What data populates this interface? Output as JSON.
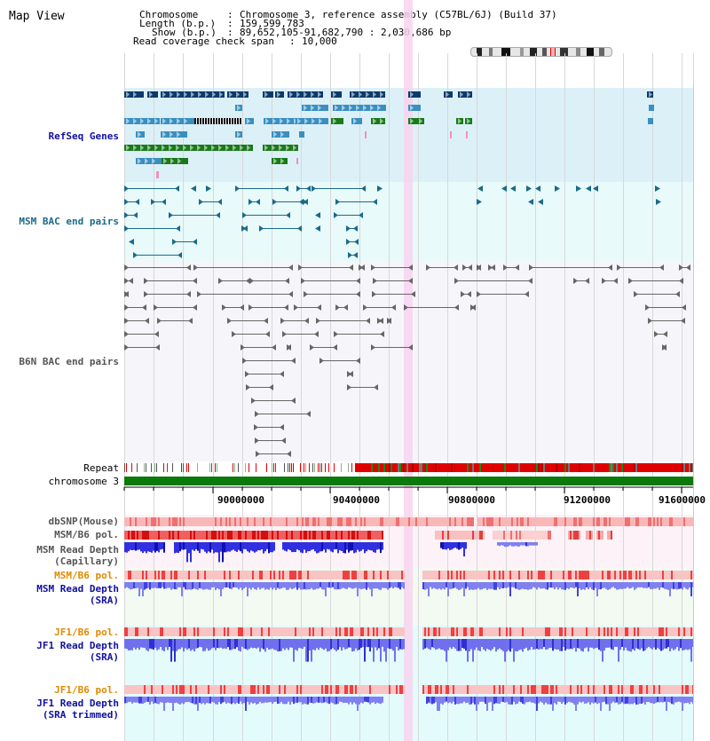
{
  "view_title": "Map View",
  "header": {
    "chromosome_key": "Chromosome",
    "chromosome_value": "Chromosome 3, reference assembly (C57BL/6J) (Build 37)",
    "length_key": "Length (b.p.)",
    "length_value": "159,599,783",
    "show_key": "Show (b.p.)",
    "show_value": "89,652,105-91,682,790 : 2,030,686 bp",
    "coverage_key": "Read coverage check span",
    "coverage_value": "10,000"
  },
  "tracks": {
    "refseq": "RefSeq Genes",
    "msm_bac": "MSM BAC end pairs",
    "b6n_bac": "B6N BAC end pairs",
    "repeat": "Repeat",
    "chromosome": "chromosome 3",
    "dbsnp": "dbSNP(Mouse)",
    "msm_b6_pol_1": "MSM/B6 pol.",
    "msm_read_depth_cap_1": "MSM Read Depth",
    "msm_read_depth_cap_2": "(Capillary)",
    "msm_b6_pol_2": "MSM/B6 pol.",
    "msm_read_depth_sra_1": "MSM Read Depth",
    "msm_read_depth_sra_2": "(SRA)",
    "jf1_b6_pol_1": "JF1/B6 pol.",
    "jf1_read_depth_sra_1": "JF1 Read Depth",
    "jf1_read_depth_sra_2": "(SRA)",
    "jf1_b6_pol_2": "JF1/B6 pol.",
    "jf1_read_depth_trim_1": "JF1 Read Depth",
    "jf1_read_depth_trim_2": "(SRA trimmed)"
  },
  "axis": {
    "ticks": [
      "90000000",
      "90400000",
      "90800000",
      "91200000",
      "91600000"
    ]
  },
  "colors": {
    "refseq_bg": "#dcf0f8",
    "msm_bac_bg": "#e8fafa",
    "b6n_bg": "#f4f4f8",
    "highlight": "#f8d8f0",
    "dark_navy": "#0a3a6e",
    "teal_blue": "#3a8fbf",
    "green": "#1a7a1a",
    "chromosome_green": "#0b7a0b",
    "depth_blue": "#7070ee",
    "depth_dark": "#2020d0",
    "pol_red": "#e03030",
    "pink": "#f8b8c8",
    "label_blue": "#1010a0",
    "label_orange": "#e08a00",
    "label_teal": "#1a6a8a",
    "label_gray": "#555555"
  }
}
